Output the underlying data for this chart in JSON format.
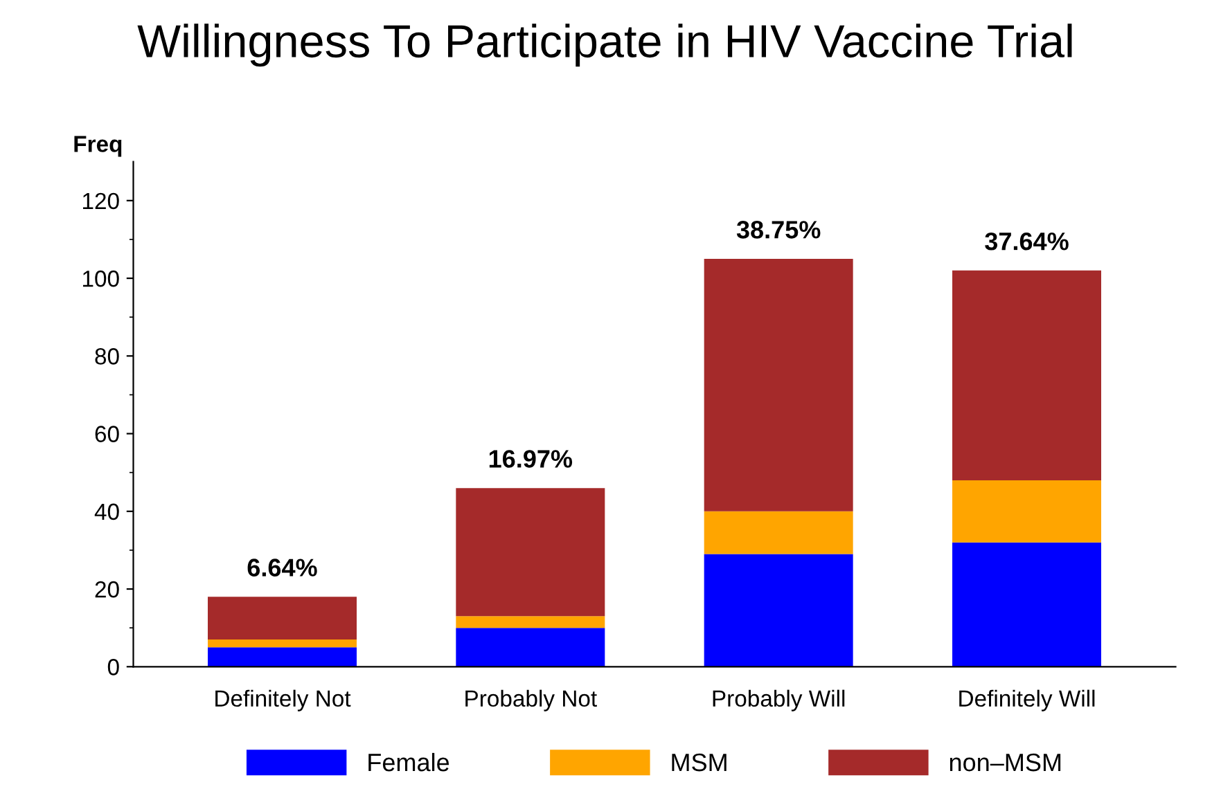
{
  "chart_data": {
    "type": "bar",
    "title": "Willingness To Participate in HIV Vaccine Trial",
    "ylabel": "Freq",
    "categories": [
      "Definitely Not",
      "Probably Not",
      "Probably Will",
      "Definitely Will"
    ],
    "stacked": true,
    "series": [
      {
        "name": "Female",
        "color": "#0000ff",
        "values": [
          5,
          10,
          29,
          32
        ]
      },
      {
        "name": "MSM",
        "color": "#ffa500",
        "values": [
          2,
          3,
          11,
          16
        ]
      },
      {
        "name": "non–MSM",
        "color": "#a52a2a",
        "values": [
          11,
          33,
          65,
          54
        ]
      }
    ],
    "annotations": [
      {
        "text": "6.64%",
        "x": "Definitely Not",
        "y": 18
      },
      {
        "text": "16.97%",
        "x": "Probably Not",
        "y": 46
      },
      {
        "text": "38.75%",
        "x": "Probably Will",
        "y": 105
      },
      {
        "text": "37.64%",
        "x": "Definitely Will",
        "y": 102
      }
    ],
    "ylim": [
      0,
      130
    ],
    "yticks": [
      0,
      20,
      40,
      60,
      80,
      100,
      120
    ],
    "grid": false,
    "legend": "bottom"
  }
}
